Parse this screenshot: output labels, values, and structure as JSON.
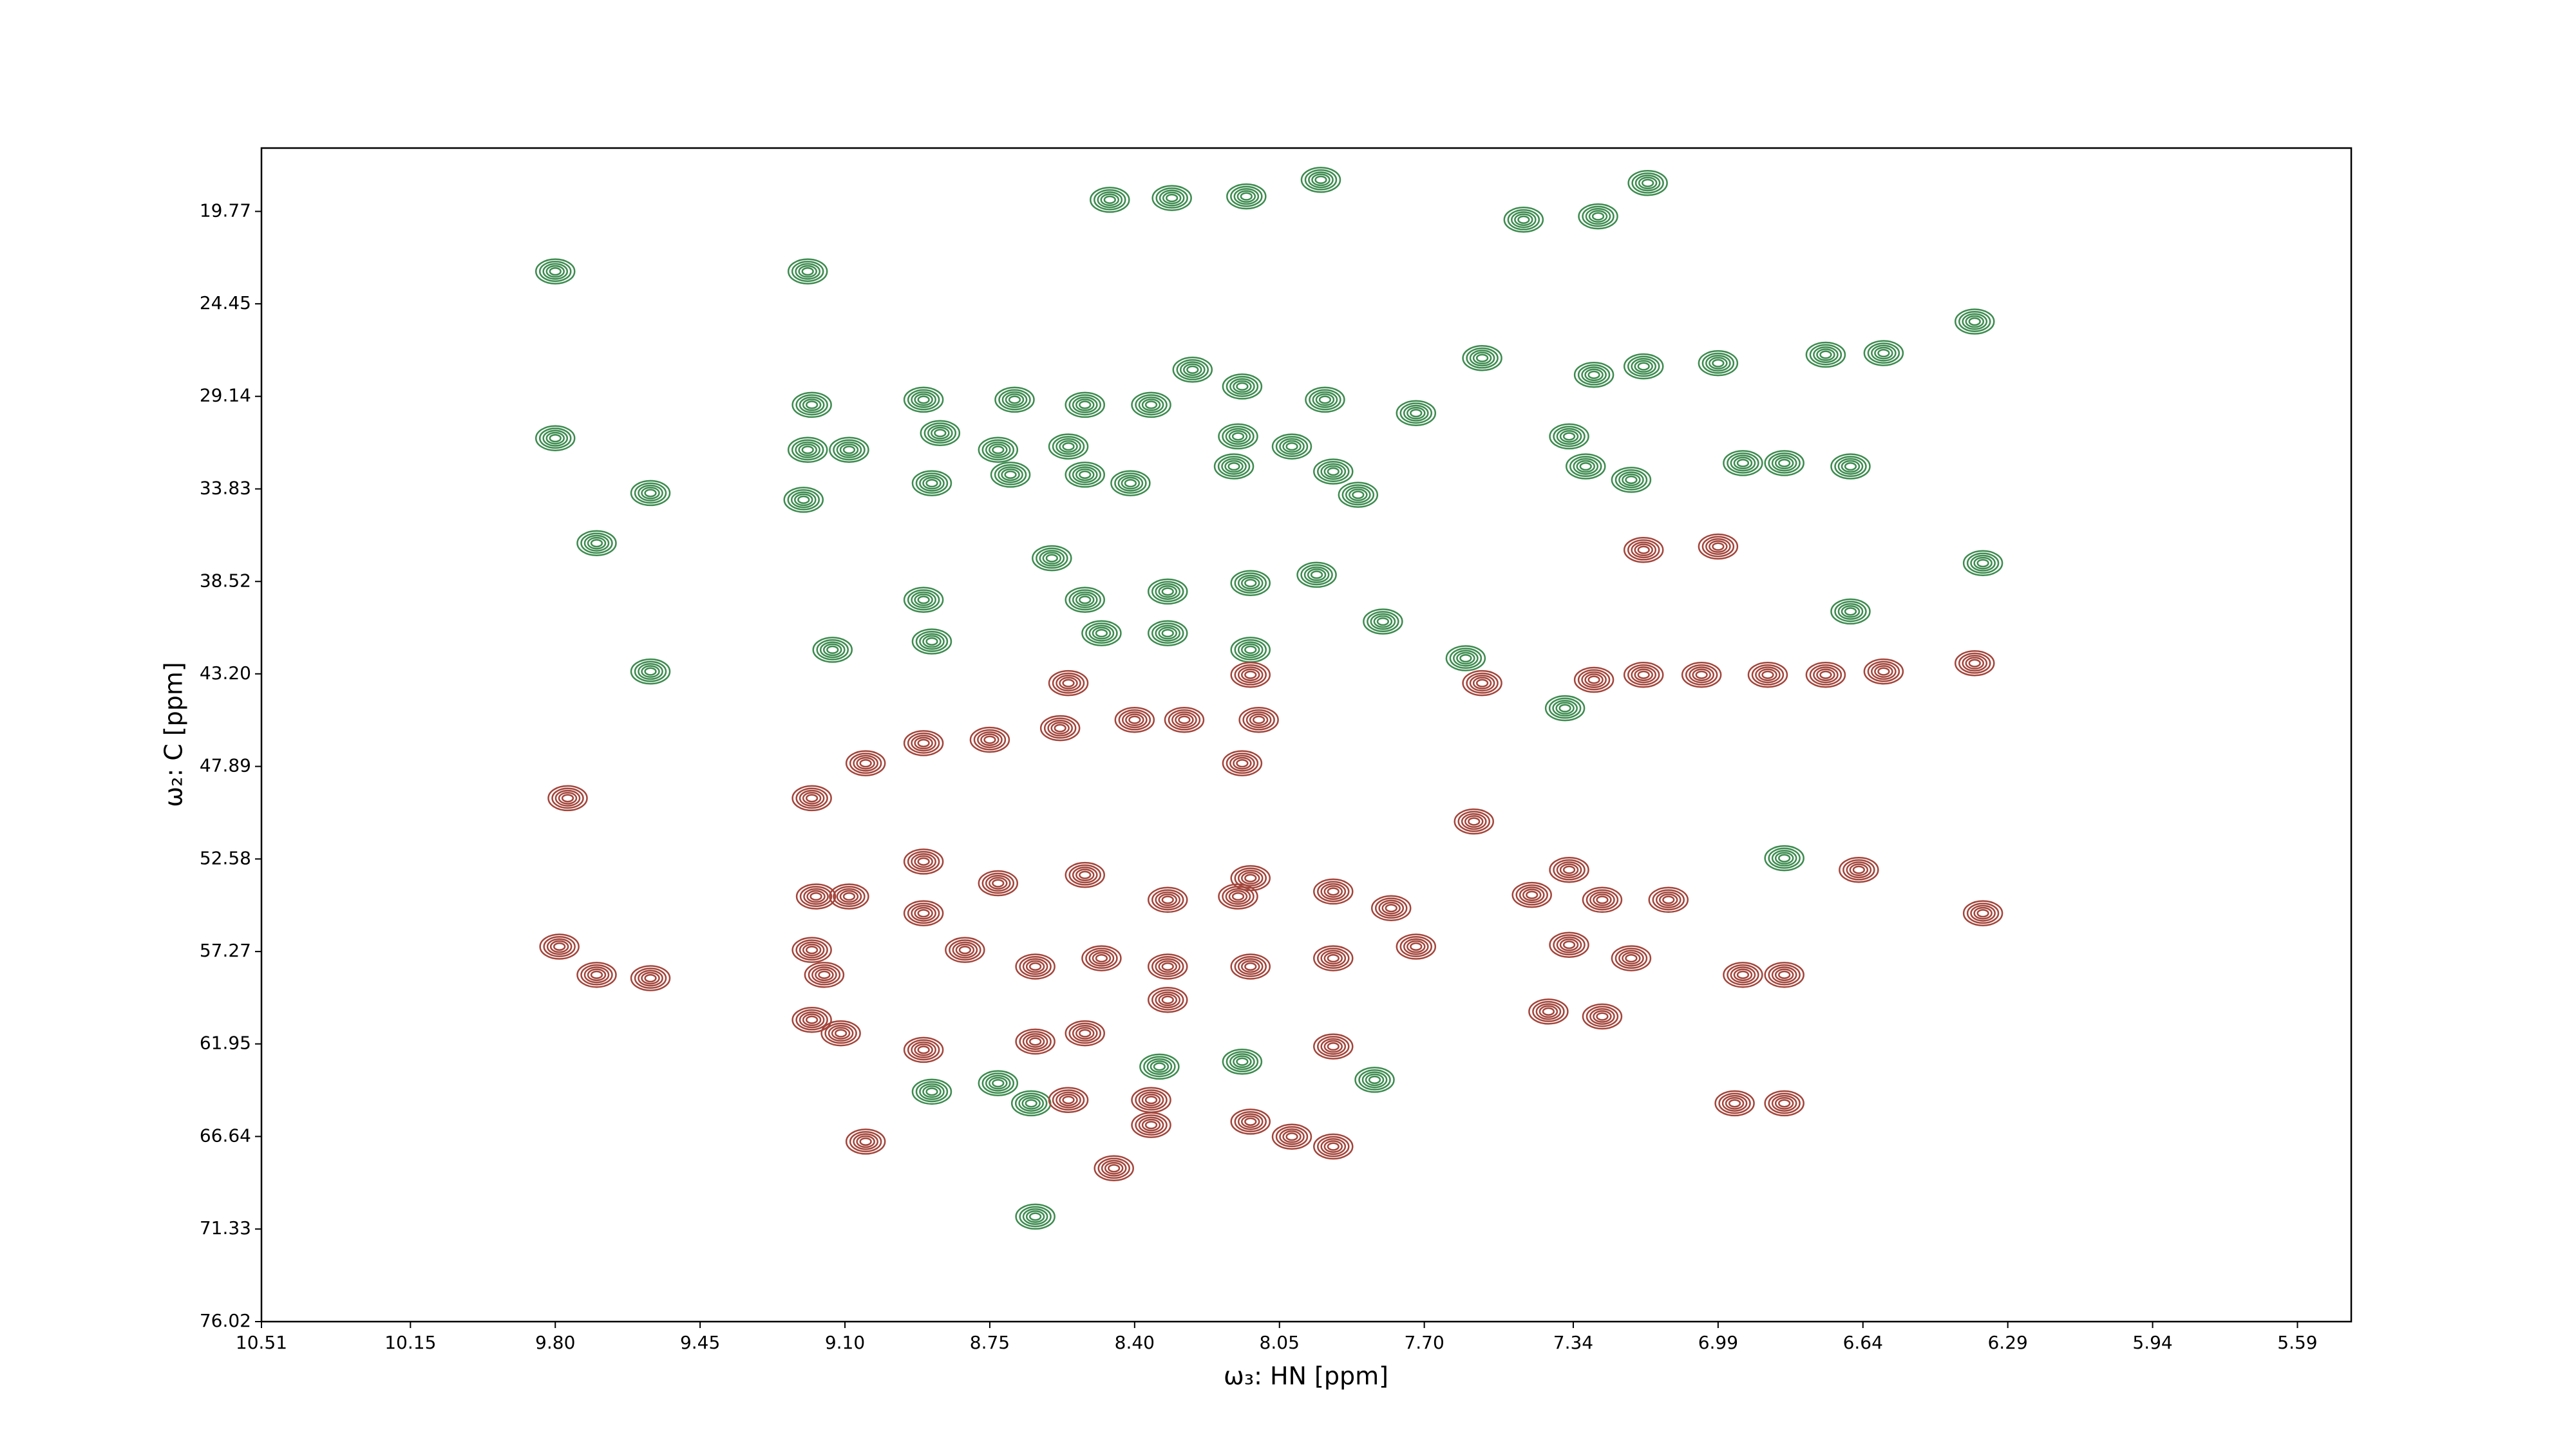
{
  "chart_data": {
    "type": "contour",
    "x_label": "ω₃: HN [ppm]",
    "y_label": "ω₂: C [ppm]",
    "xlim": [
      10.51,
      5.46
    ],
    "ylim": [
      76.02,
      16.56
    ],
    "xticks": [
      10.51,
      10.15,
      {
        "value": 9.8,
        "label": "9.80"
      },
      9.45,
      {
        "value": 9.1,
        "label": "9.10"
      },
      8.75,
      {
        "value": 8.4,
        "label": "8.40"
      },
      8.05,
      {
        "value": 7.7,
        "label": "7.70"
      },
      7.34,
      6.99,
      6.64,
      6.29,
      5.94,
      5.59
    ],
    "yticks": [
      19.77,
      24.45,
      29.14,
      33.83,
      38.52,
      {
        "value": 43.2,
        "label": "43.20"
      },
      47.89,
      52.58,
      57.27,
      61.95,
      66.64,
      71.33,
      76.02
    ],
    "series": [
      {
        "color": "#3d8b4f",
        "x": [
          9.8,
          9.19,
          8.46,
          8.31,
          8.13,
          7.95,
          7.16,
          7.46,
          7.28,
          6.37,
          7.56,
          7.29,
          7.17,
          6.99,
          6.73,
          6.59,
          9.18,
          9.8,
          9.19,
          9.09,
          9.2,
          9.57,
          9.7,
          8.91,
          8.69,
          8.52,
          8.36,
          8.26,
          8.14,
          7.94,
          7.72,
          8.87,
          8.73,
          8.56,
          8.15,
          8.02,
          8.89,
          8.7,
          8.52,
          8.41,
          8.16,
          7.92,
          7.86,
          7.35,
          7.31,
          7.2,
          6.93,
          6.83,
          6.67,
          6.35,
          6.67,
          8.6,
          8.91,
          8.89,
          8.52,
          8.32,
          8.12,
          7.96,
          7.8,
          8.48,
          8.32,
          8.12,
          9.13,
          9.57,
          7.6,
          7.36,
          8.89,
          8.73,
          8.65,
          8.34,
          8.14,
          7.82,
          8.64,
          6.83
        ],
        "y": [
          22.81,
          22.81,
          19.18,
          19.09,
          19.01,
          18.17,
          18.33,
          20.19,
          20.02,
          25.35,
          27.2,
          28.05,
          27.62,
          27.46,
          27.03,
          26.95,
          29.57,
          31.26,
          31.85,
          31.85,
          34.38,
          34.04,
          36.58,
          29.31,
          29.31,
          29.57,
          29.57,
          27.79,
          28.64,
          29.31,
          29.99,
          31.0,
          31.85,
          31.68,
          31.17,
          31.68,
          33.54,
          33.11,
          33.11,
          33.54,
          32.69,
          32.95,
          34.13,
          31.17,
          32.69,
          33.37,
          32.52,
          32.52,
          32.69,
          37.59,
          40.04,
          37.34,
          39.45,
          41.56,
          39.45,
          39.03,
          38.6,
          38.18,
          40.55,
          41.14,
          41.14,
          41.98,
          41.98,
          43.08,
          42.41,
          44.94,
          64.37,
          63.94,
          64.96,
          63.1,
          62.85,
          63.77,
          70.7,
          52.54
        ]
      },
      {
        "color": "#a3453b",
        "x": [
          9.77,
          9.18,
          9.05,
          8.91,
          8.75,
          8.58,
          8.4,
          8.28,
          8.1,
          8.14,
          8.56,
          8.12,
          7.56,
          7.29,
          7.17,
          7.03,
          6.87,
          6.73,
          6.59,
          6.37,
          8.91,
          9.17,
          9.09,
          8.91,
          8.73,
          8.52,
          8.32,
          8.12,
          7.92,
          7.78,
          8.81,
          8.64,
          8.48,
          8.32,
          8.12,
          7.92,
          7.72,
          7.44,
          7.27,
          7.11,
          7.35,
          7.35,
          7.2,
          6.93,
          6.83,
          6.65,
          6.35,
          9.79,
          9.7,
          9.57,
          9.18,
          9.15,
          9.18,
          9.11,
          8.91,
          8.64,
          8.52,
          8.56,
          8.36,
          8.36,
          8.12,
          8.02,
          7.92,
          7.92,
          7.4,
          7.27,
          9.05,
          8.45,
          7.58,
          6.95,
          6.83,
          6.99,
          7.17,
          8.15,
          8.32
        ],
        "y": [
          49.5,
          49.5,
          47.73,
          46.71,
          46.54,
          45.95,
          45.53,
          45.53,
          45.53,
          47.73,
          43.67,
          43.25,
          43.67,
          43.5,
          43.25,
          43.25,
          43.25,
          43.25,
          43.08,
          42.66,
          52.71,
          54.48,
          54.48,
          55.33,
          53.81,
          53.39,
          54.65,
          53.55,
          54.23,
          55.07,
          57.19,
          58.03,
          57.61,
          58.03,
          58.03,
          57.61,
          57.02,
          54.4,
          54.65,
          54.65,
          53.13,
          56.93,
          57.61,
          58.45,
          58.45,
          53.13,
          55.33,
          57.02,
          58.45,
          58.62,
          57.19,
          58.45,
          60.73,
          61.41,
          62.25,
          61.83,
          61.41,
          64.79,
          64.79,
          66.06,
          65.89,
          66.65,
          67.15,
          62.08,
          60.31,
          60.56,
          66.9,
          68.25,
          50.68,
          64.96,
          64.96,
          36.75,
          36.92,
          54.48,
          59.72
        ]
      }
    ]
  }
}
